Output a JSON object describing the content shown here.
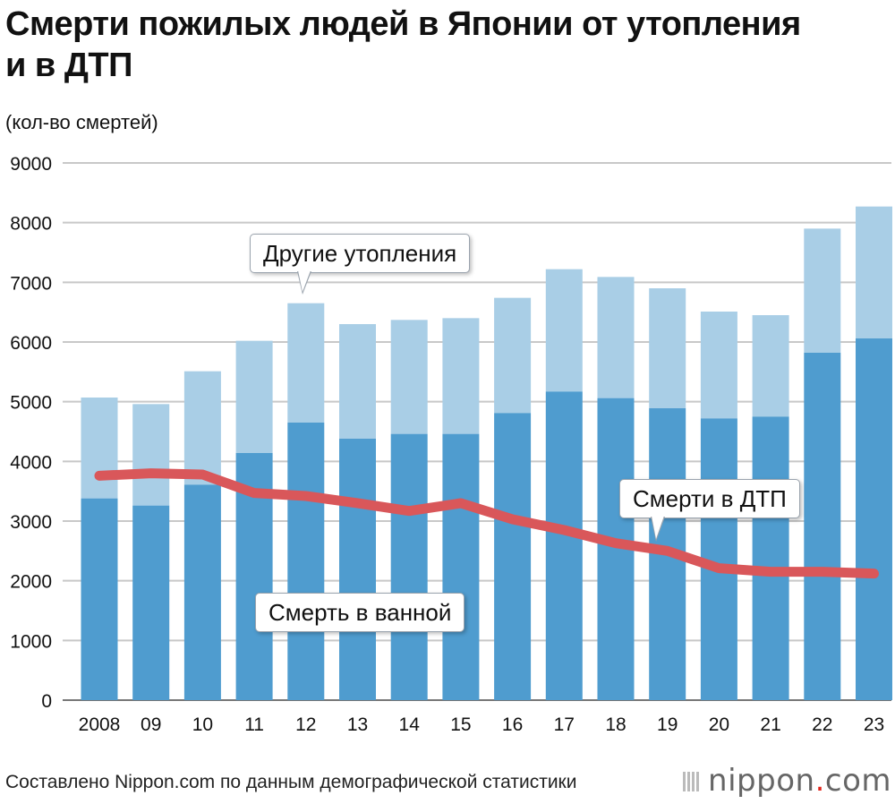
{
  "header": {
    "title": "Смерти пожилых людей в Японии от утопления и в ДТП",
    "unit_label": "(кол-во смертей)"
  },
  "footer": {
    "source": "Составлено Nippon.com по данным демографической статистики",
    "logo_main": "nippon",
    "logo_dot": ".",
    "logo_suffix": "com"
  },
  "colors": {
    "bath": "#4f9ccf",
    "other": "#a9cee6",
    "traffic": "#d9575a",
    "grid": "#c8c8c8"
  },
  "chart_data": {
    "type": "bar",
    "stacked": true,
    "title": "Смерти пожилых людей в Японии от утопления и в ДТП",
    "ylabel": "(кол-во смертей)",
    "ylim": [
      0,
      9000
    ],
    "yticks": [
      "0",
      "1000",
      "2000",
      "3000",
      "4000",
      "5000",
      "6000",
      "7000",
      "8000",
      "9000"
    ],
    "grid": true,
    "categories": [
      "2008",
      "09",
      "10",
      "11",
      "12",
      "13",
      "14",
      "15",
      "16",
      "17",
      "18",
      "19",
      "20",
      "21",
      "22",
      "23"
    ],
    "series": [
      {
        "name": "Смерть в ванной",
        "type": "bar",
        "values": [
          3380,
          3260,
          3610,
          4140,
          4650,
          4380,
          4460,
          4460,
          4810,
          5170,
          5060,
          4890,
          4720,
          4750,
          5820,
          6060
        ]
      },
      {
        "name": "Другие утопления",
        "type": "bar",
        "values": [
          1690,
          1700,
          1900,
          1880,
          2000,
          1920,
          1910,
          1940,
          1930,
          2050,
          2030,
          2010,
          1790,
          1700,
          2080,
          2210
        ]
      },
      {
        "name": "Смерти в ДТП",
        "type": "line",
        "values": [
          3760,
          3800,
          3780,
          3470,
          3420,
          3300,
          3170,
          3300,
          3030,
          2850,
          2630,
          2500,
          2210,
          2150,
          2150,
          2120
        ]
      }
    ],
    "annotations": {
      "other": "Другие утопления",
      "traffic": "Смерти в ДТП",
      "bath": "Смерть в ванной"
    }
  }
}
